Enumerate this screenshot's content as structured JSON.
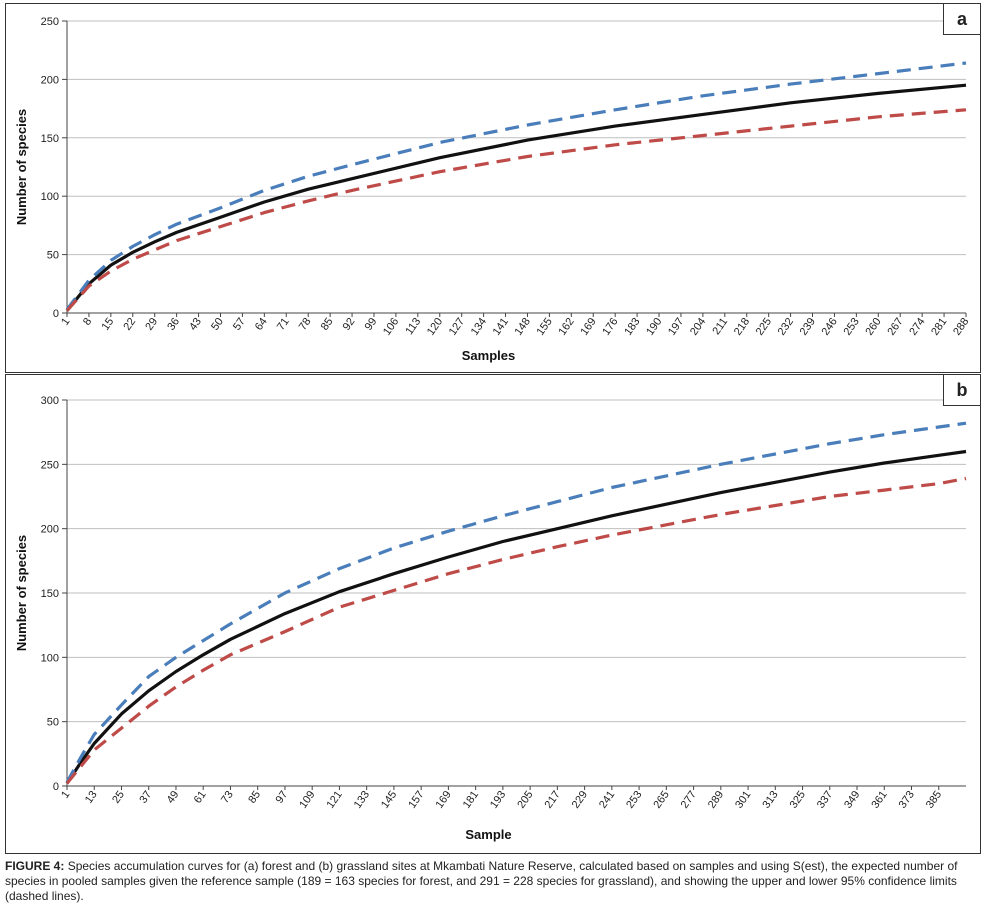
{
  "colors": {
    "observed": "#111111",
    "upper": "#4a7ebb",
    "lower": "#be4b48",
    "grid": "#bfbfbf"
  },
  "chart_data": [
    {
      "panel": "a",
      "type": "line",
      "xlabel": "Samples",
      "ylabel": "Number of species",
      "xlim": [
        1,
        288
      ],
      "ylim": [
        0,
        250
      ],
      "y_ticks": [
        0,
        50,
        100,
        150,
        200,
        250
      ],
      "x_tick_labels": [
        "1",
        "8",
        "15",
        "22",
        "29",
        "36",
        "43",
        "50",
        "57",
        "64",
        "71",
        "78",
        "85",
        "92",
        "99",
        "106",
        "113",
        "120",
        "127",
        "134",
        "141",
        "148",
        "155",
        "162",
        "169",
        "176",
        "183",
        "190",
        "197",
        "204",
        "211",
        "218",
        "225",
        "232",
        "239",
        "246",
        "253",
        "260",
        "267",
        "274",
        "281",
        "288"
      ],
      "grid": "horizontal",
      "series": [
        {
          "role": "observed",
          "style": "solid",
          "color": "#111111",
          "x": [
            1,
            8,
            15,
            22,
            29,
            36,
            50,
            64,
            78,
            92,
            120,
            148,
            176,
            204,
            232,
            260,
            288
          ],
          "y": [
            2,
            25,
            41,
            52,
            61,
            69,
            82,
            95,
            106,
            115,
            133,
            148,
            160,
            170,
            180,
            188,
            195
          ]
        },
        {
          "role": "upper-95-ci",
          "style": "dashed",
          "color": "#4a7ebb",
          "x": [
            1,
            8,
            15,
            22,
            29,
            36,
            50,
            64,
            78,
            92,
            120,
            148,
            176,
            204,
            232,
            260,
            288
          ],
          "y": [
            3,
            28,
            45,
            57,
            67,
            76,
            90,
            105,
            117,
            127,
            146,
            161,
            174,
            186,
            196,
            205,
            214
          ]
        },
        {
          "role": "lower-95-ci",
          "style": "dashed",
          "color": "#be4b48",
          "x": [
            1,
            8,
            15,
            22,
            29,
            36,
            50,
            64,
            78,
            92,
            120,
            148,
            176,
            204,
            232,
            260,
            288
          ],
          "y": [
            2,
            23,
            36,
            46,
            54,
            62,
            74,
            86,
            96,
            105,
            121,
            134,
            144,
            152,
            160,
            168,
            174
          ]
        }
      ]
    },
    {
      "panel": "b",
      "type": "line",
      "xlabel": "Sample",
      "ylabel": "Number of species",
      "xlim": [
        1,
        397
      ],
      "ylim": [
        0,
        300
      ],
      "y_ticks": [
        0,
        50,
        100,
        150,
        200,
        250,
        300
      ],
      "x_tick_labels": [
        "1",
        "13",
        "25",
        "37",
        "49",
        "61",
        "73",
        "85",
        "97",
        "109",
        "121",
        "133",
        "145",
        "157",
        "169",
        "181",
        "193",
        "205",
        "217",
        "229",
        "241",
        "253",
        "265",
        "277",
        "289",
        "301",
        "313",
        "325",
        "337",
        "349",
        "361",
        "373",
        "385"
      ],
      "grid": "horizontal",
      "series": [
        {
          "role": "observed",
          "style": "solid",
          "color": "#111111",
          "x": [
            1,
            7,
            13,
            25,
            37,
            49,
            61,
            73,
            97,
            121,
            145,
            169,
            193,
            217,
            241,
            265,
            289,
            313,
            337,
            361,
            385,
            397
          ],
          "y": [
            2,
            18,
            33,
            56,
            74,
            89,
            102,
            114,
            134,
            151,
            165,
            178,
            190,
            200,
            210,
            219,
            228,
            236,
            244,
            251,
            257,
            260
          ]
        },
        {
          "role": "upper-95-ci",
          "style": "dashed",
          "color": "#4a7ebb",
          "x": [
            1,
            7,
            13,
            25,
            37,
            49,
            61,
            73,
            97,
            121,
            145,
            169,
            193,
            217,
            241,
            265,
            289,
            313,
            337,
            361,
            385,
            397
          ],
          "y": [
            3,
            22,
            40,
            63,
            85,
            100,
            113,
            126,
            150,
            169,
            185,
            198,
            210,
            221,
            232,
            241,
            250,
            258,
            266,
            273,
            279,
            282
          ]
        },
        {
          "role": "lower-95-ci",
          "style": "dashed",
          "color": "#be4b48",
          "x": [
            1,
            7,
            13,
            25,
            37,
            49,
            61,
            73,
            97,
            121,
            145,
            169,
            193,
            217,
            241,
            265,
            289,
            313,
            337,
            361,
            385,
            397
          ],
          "y": [
            2,
            15,
            28,
            45,
            62,
            77,
            90,
            102,
            120,
            139,
            152,
            165,
            176,
            186,
            195,
            203,
            211,
            218,
            225,
            230,
            235,
            239
          ]
        }
      ]
    }
  ],
  "caption": {
    "label": "FIGURE 4:",
    "text": "Species accumulation curves for (a) forest and (b) grassland sites at Mkambati Nature Reserve, calculated based on samples and using S(est), the expected number of species in pooled samples given the reference sample (189 = 163 species for forest, and 291 = 228 species for grassland), and showing the upper and lower 95% confidence limits (dashed lines)."
  }
}
